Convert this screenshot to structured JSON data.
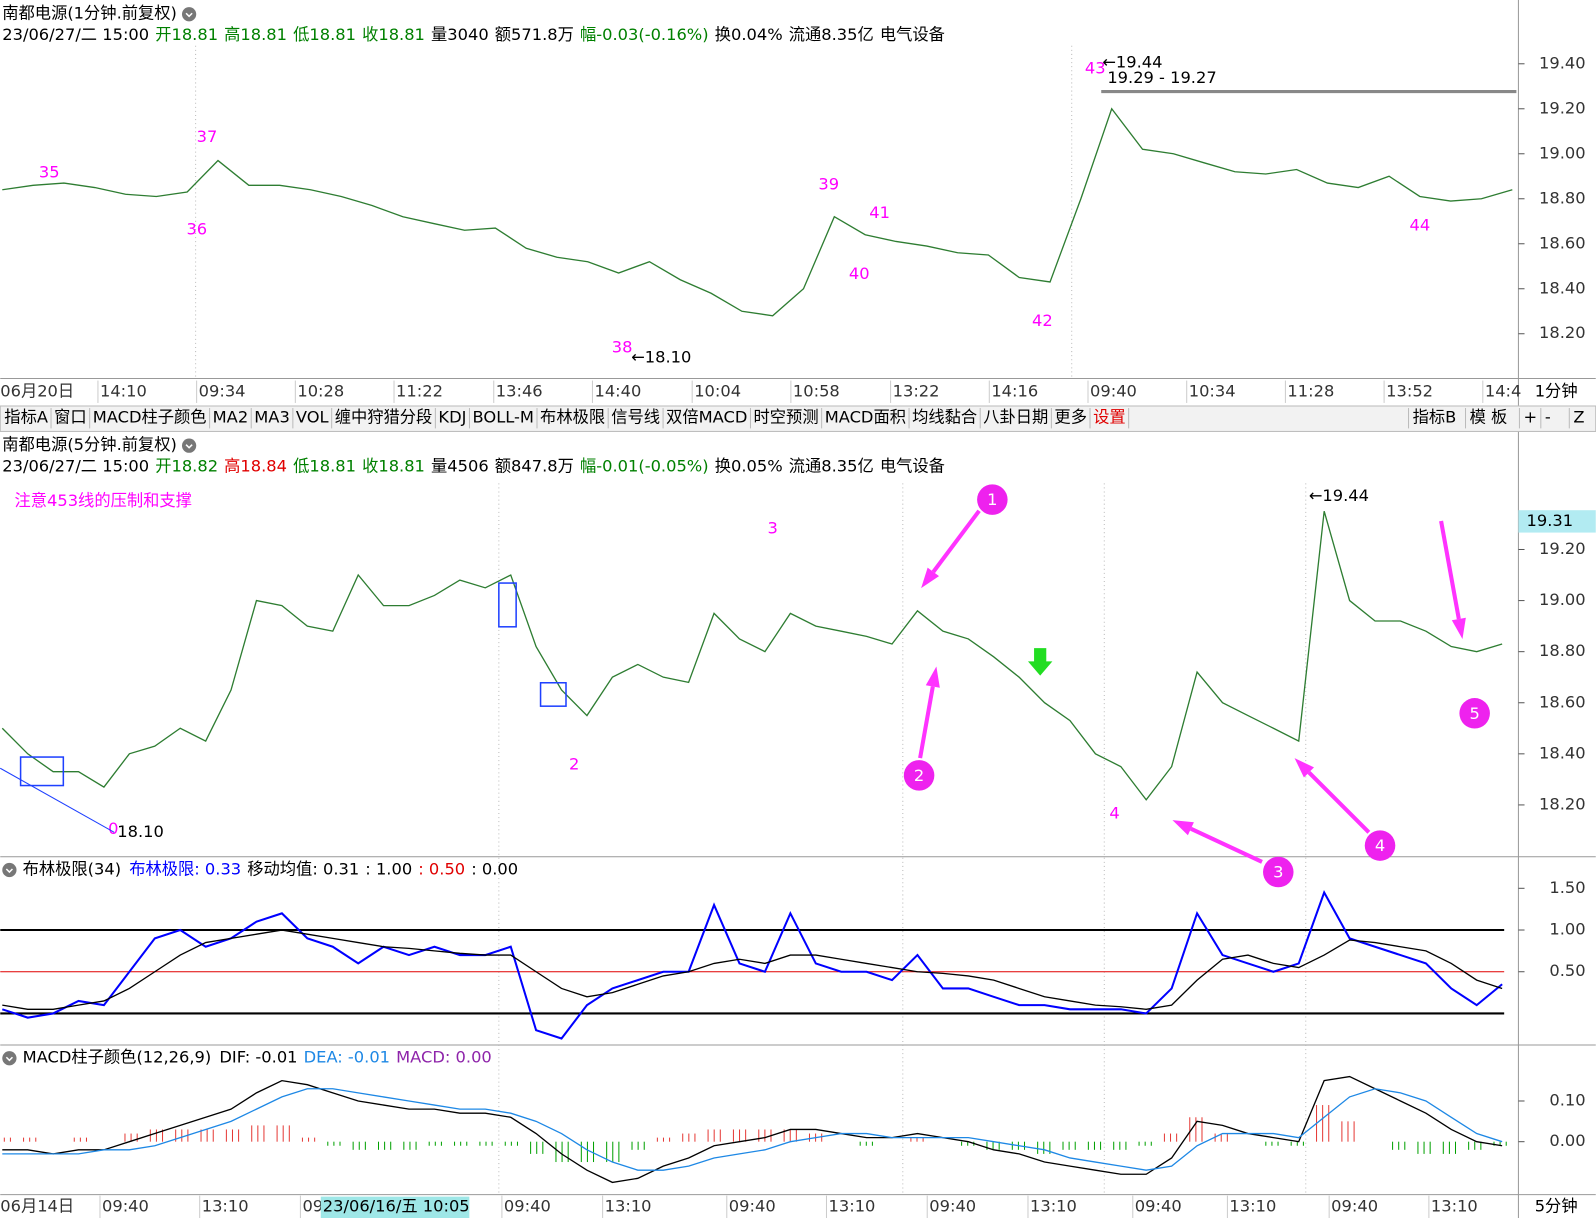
{
  "chart_data": [
    {
      "type": "line",
      "title": "南都电源(1分钟.前复权)",
      "info": [
        {
          "text": "23/06/27/二 15:00",
          "color": "#000000"
        },
        {
          "text": "开18.81",
          "color": "#008000"
        },
        {
          "text": "高18.81",
          "color": "#008000"
        },
        {
          "text": "低18.81",
          "color": "#008000"
        },
        {
          "text": "收18.81",
          "color": "#008000"
        },
        {
          "text": "量3040",
          "color": "#000000"
        },
        {
          "text": "额571.8万",
          "color": "#000000"
        },
        {
          "text": "幅-0.03(-0.16%)",
          "color": "#008000"
        },
        {
          "text": "换0.04%",
          "color": "#000000"
        },
        {
          "text": "流通8.35亿",
          "color": "#000000"
        },
        {
          "text": "电气设备",
          "color": "#000000"
        }
      ],
      "ylim": [
        18.01,
        19.48
      ],
      "yticks": [
        {
          "value": 19.4,
          "label": "19.40"
        },
        {
          "value": 19.2,
          "label": "19.20"
        },
        {
          "value": 19.0,
          "label": "19.00"
        },
        {
          "value": 18.8,
          "label": "18.80"
        },
        {
          "value": 18.6,
          "label": "18.60"
        },
        {
          "value": 18.4,
          "label": "18.40"
        },
        {
          "value": 18.2,
          "label": "18.20"
        }
      ],
      "series": [
        {
          "color": "#2e7d32",
          "values": [
            18.84,
            18.86,
            18.87,
            18.85,
            18.82,
            18.81,
            18.83,
            18.97,
            18.86,
            18.86,
            18.84,
            18.81,
            18.77,
            18.72,
            18.69,
            18.66,
            18.67,
            18.58,
            18.54,
            18.52,
            18.47,
            18.52,
            18.44,
            18.38,
            18.3,
            18.28,
            18.4,
            18.72,
            18.64,
            18.61,
            18.59,
            18.56,
            18.55,
            18.45,
            18.43,
            18.8,
            19.2,
            19.02,
            19.0,
            18.96,
            18.92,
            18.91,
            18.93,
            18.87,
            18.85,
            18.9,
            18.81,
            18.79,
            18.8,
            18.84
          ]
        }
      ],
      "annotations": [
        "35",
        "36",
        "37",
        "38",
        "39",
        "40",
        "41",
        "42",
        "43",
        "44",
        "←18.10",
        "←19.44",
        "19.29 - 19.27"
      ],
      "time_labels": [
        "06月20日",
        "14:10",
        "09:34",
        "10:28",
        "11:22",
        "13:46",
        "14:40",
        "10:04",
        "10:58",
        "13:22",
        "14:16",
        "09:40",
        "10:34",
        "11:28",
        "13:52",
        "14:4"
      ],
      "period": "1分钟"
    },
    {
      "type": "line",
      "title": "南都电源(5分钟.前复权)",
      "info": [
        {
          "text": "23/06/27/二 15:00",
          "color": "#000000"
        },
        {
          "text": "开18.82",
          "color": "#008000"
        },
        {
          "text": "高18.84",
          "color": "#e00000"
        },
        {
          "text": "低18.81",
          "color": "#008000"
        },
        {
          "text": "收18.81",
          "color": "#008000"
        },
        {
          "text": "量4506",
          "color": "#000000"
        },
        {
          "text": "额847.8万",
          "color": "#000000"
        },
        {
          "text": "幅-0.01(-0.05%)",
          "color": "#008000"
        },
        {
          "text": "换0.05%",
          "color": "#000000"
        },
        {
          "text": "流通8.35亿",
          "color": "#000000"
        },
        {
          "text": "电气设备",
          "color": "#000000"
        }
      ],
      "ylim": [
        18.005,
        19.459
      ],
      "yticks": [
        {
          "value": 19.2,
          "label": "19.20"
        },
        {
          "value": 19.0,
          "label": "19.00"
        },
        {
          "value": 18.8,
          "label": "18.80"
        },
        {
          "value": 18.6,
          "label": "18.60"
        },
        {
          "value": 18.4,
          "label": "18.40"
        },
        {
          "value": 18.2,
          "label": "18.20"
        }
      ],
      "current_price": {
        "value": 19.31,
        "label": "19.31"
      },
      "series": [
        {
          "color": "#2e7d32",
          "values": [
            18.5,
            18.4,
            18.33,
            18.33,
            18.27,
            18.4,
            18.43,
            18.5,
            18.45,
            18.65,
            19.0,
            18.98,
            18.9,
            18.88,
            19.1,
            18.98,
            18.98,
            19.02,
            19.08,
            19.05,
            19.1,
            18.82,
            18.65,
            18.55,
            18.7,
            18.75,
            18.7,
            18.68,
            18.95,
            18.85,
            18.8,
            18.95,
            18.9,
            18.88,
            18.86,
            18.83,
            18.96,
            18.88,
            18.85,
            18.78,
            18.7,
            18.6,
            18.53,
            18.4,
            18.35,
            18.22,
            18.35,
            18.72,
            18.6,
            18.55,
            18.5,
            18.45,
            19.35,
            19.0,
            18.92,
            18.92,
            18.88,
            18.82,
            18.8,
            18.83
          ]
        }
      ],
      "note": "注意453线的压制和支撑",
      "annotations": [
        "0",
        "18.10",
        "2",
        "3",
        "4",
        "←19.44"
      ],
      "markers": [
        "1",
        "2",
        "3",
        "4",
        "5"
      ]
    },
    {
      "type": "line",
      "title": "布林极限(34)",
      "legend": [
        {
          "text": "布林极限: 0.33",
          "color": "#0000ff"
        },
        {
          "text": "移动均值: 0.31",
          "color": "#000000"
        },
        {
          "text": ": 1.00",
          "color": "#000000"
        },
        {
          "text": ": 0.50",
          "color": "#e00000"
        },
        {
          "text": ": 0.00",
          "color": "#000000"
        }
      ],
      "ylim": [
        -0.354,
        1.634
      ],
      "yticks": [
        {
          "value": 1.5,
          "label": "1.50"
        },
        {
          "value": 1.0,
          "label": "1.00"
        },
        {
          "value": 0.5,
          "label": "0.50"
        }
      ],
      "hlines": [
        {
          "value": 1,
          "color": "#000000"
        },
        {
          "value": 0.5,
          "color": "#e00000"
        },
        {
          "value": 0,
          "color": "#000000"
        }
      ],
      "series": [
        {
          "color": "#0000ff",
          "values": [
            0.05,
            -0.05,
            0.0,
            0.15,
            0.1,
            0.5,
            0.9,
            1.0,
            0.8,
            0.9,
            1.1,
            1.2,
            0.9,
            0.8,
            0.6,
            0.8,
            0.7,
            0.8,
            0.7,
            0.7,
            0.8,
            -0.2,
            -0.3,
            0.1,
            0.3,
            0.4,
            0.5,
            0.5,
            1.3,
            0.6,
            0.5,
            1.2,
            0.6,
            0.5,
            0.5,
            0.4,
            0.7,
            0.3,
            0.3,
            0.2,
            0.1,
            0.1,
            0.05,
            0.05,
            0.05,
            0.0,
            0.3,
            1.2,
            0.7,
            0.6,
            0.5,
            0.6,
            1.45,
            0.9,
            0.8,
            0.7,
            0.6,
            0.3,
            0.1,
            0.35
          ]
        },
        {
          "color": "#000000",
          "values": [
            0.1,
            0.05,
            0.05,
            0.1,
            0.15,
            0.3,
            0.5,
            0.7,
            0.85,
            0.9,
            0.95,
            1.0,
            0.95,
            0.9,
            0.85,
            0.8,
            0.78,
            0.75,
            0.72,
            0.7,
            0.7,
            0.5,
            0.3,
            0.2,
            0.25,
            0.35,
            0.45,
            0.5,
            0.6,
            0.65,
            0.6,
            0.7,
            0.7,
            0.65,
            0.6,
            0.55,
            0.5,
            0.48,
            0.45,
            0.4,
            0.3,
            0.2,
            0.15,
            0.1,
            0.08,
            0.05,
            0.1,
            0.4,
            0.65,
            0.7,
            0.6,
            0.55,
            0.7,
            0.88,
            0.85,
            0.8,
            0.75,
            0.6,
            0.4,
            0.3
          ]
        }
      ]
    },
    {
      "type": "macd",
      "title": "MACD柱子颜色(12,26,9)",
      "legend": [
        {
          "text": "DIF: -0.01",
          "color": "#000000"
        },
        {
          "text": "DEA: -0.01",
          "color": "#1e88e5"
        },
        {
          "text": "MACD: 0.00",
          "color": "#8e24aa"
        }
      ],
      "ylim": [
        -0.125,
        0.18
      ],
      "yticks": [
        {
          "value": 0.1,
          "label": "0.10"
        },
        {
          "value": 0,
          "label": "0.00"
        }
      ],
      "series": [
        {
          "color": "#000000",
          "values": [
            -0.02,
            -0.02,
            -0.03,
            -0.02,
            -0.02,
            0.0,
            0.02,
            0.04,
            0.06,
            0.08,
            0.12,
            0.15,
            0.14,
            0.12,
            0.1,
            0.09,
            0.08,
            0.08,
            0.07,
            0.07,
            0.06,
            0.02,
            -0.03,
            -0.07,
            -0.1,
            -0.09,
            -0.06,
            -0.04,
            -0.01,
            0.0,
            0.01,
            0.03,
            0.03,
            0.02,
            0.01,
            0.01,
            0.02,
            0.01,
            0.0,
            -0.02,
            -0.03,
            -0.05,
            -0.06,
            -0.07,
            -0.08,
            -0.08,
            -0.04,
            0.05,
            0.04,
            0.02,
            0.01,
            0.0,
            0.15,
            0.16,
            0.13,
            0.1,
            0.07,
            0.03,
            0.0,
            -0.01
          ]
        },
        {
          "color": "#1e88e5",
          "values": [
            -0.03,
            -0.03,
            -0.03,
            -0.03,
            -0.02,
            -0.02,
            -0.01,
            0.01,
            0.03,
            0.05,
            0.08,
            0.11,
            0.13,
            0.13,
            0.12,
            0.11,
            0.1,
            0.09,
            0.08,
            0.08,
            0.07,
            0.05,
            0.02,
            -0.02,
            -0.05,
            -0.07,
            -0.07,
            -0.06,
            -0.04,
            -0.03,
            -0.02,
            0.0,
            0.01,
            0.02,
            0.02,
            0.01,
            0.01,
            0.01,
            0.01,
            0.0,
            -0.01,
            -0.02,
            -0.04,
            -0.05,
            -0.06,
            -0.07,
            -0.06,
            -0.01,
            0.02,
            0.02,
            0.02,
            0.01,
            0.06,
            0.11,
            0.13,
            0.12,
            0.1,
            0.06,
            0.02,
            0.0
          ]
        }
      ],
      "bars": {
        "up_color": "#e53935",
        "down_color": "#00a000",
        "values": [
          0.01,
          0.01,
          0,
          0.01,
          0,
          0.02,
          0.03,
          0.03,
          0.03,
          0.03,
          0.04,
          0.04,
          0.01,
          -0.01,
          -0.02,
          -0.02,
          -0.02,
          -0.01,
          -0.01,
          -0.01,
          -0.01,
          -0.03,
          -0.05,
          -0.05,
          -0.05,
          -0.02,
          0.01,
          0.02,
          0.03,
          0.03,
          0.03,
          0.03,
          0.02,
          0,
          -0.01,
          0,
          0.01,
          0,
          -0.01,
          -0.02,
          -0.02,
          -0.03,
          -0.02,
          -0.02,
          -0.02,
          -0.01,
          0.02,
          0.06,
          0.02,
          0,
          -0.01,
          -0.01,
          0.09,
          0.05,
          0,
          -0.02,
          -0.03,
          -0.03,
          -0.02,
          -0.01
        ]
      },
      "time_labels": [
        "06月14日",
        "09:40",
        "13:10",
        "09",
        "09:40",
        "13:10",
        "09:40",
        "13:10",
        "09:40",
        "13:10",
        "09:40",
        "13:10",
        "09:40",
        "13:10"
      ],
      "cursor_label": "23/06/16/五 10:05",
      "period": "5分钟"
    }
  ],
  "toolbar": {
    "items": [
      "指标A",
      "窗口",
      "MACD柱子颜色",
      "MA2",
      "MA3",
      "VOL",
      "缠中狩猎分段",
      "KDJ",
      "BOLL-M",
      "布林极限",
      "信号线",
      "双倍MACD",
      "时空预测",
      "MACD面积",
      "均线黏合",
      "八卦日期",
      "更多",
      "设置"
    ],
    "right_items": [
      "指标B",
      "模 板",
      "+",
      "-",
      "Z"
    ]
  }
}
